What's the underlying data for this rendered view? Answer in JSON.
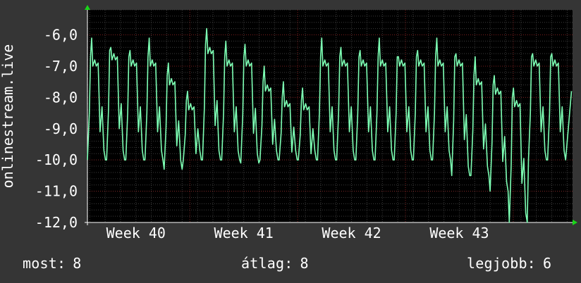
{
  "chart_data": {
    "type": "line",
    "ylabel": "onlinestream.live",
    "ylim": [
      -12.0,
      -5.2
    ],
    "yticks": [
      -6.0,
      -7.0,
      -8.0,
      -9.0,
      -10.0,
      -11.0,
      -12.0
    ],
    "ytick_labels": [
      "-6,0",
      "-7,0",
      "-8,0",
      "-9,0",
      "-10,0",
      "-11,0",
      "-12,0"
    ],
    "x_range_weeks": [
      39.55,
      44.05
    ],
    "xticks": [
      {
        "label": "Week 40",
        "week": 40
      },
      {
        "label": "Week 41",
        "week": 41
      },
      {
        "label": "Week 42",
        "week": 42
      },
      {
        "label": "Week 43",
        "week": 43
      }
    ],
    "grid": true,
    "colors": {
      "background": "#353535",
      "plot_background": "#000000",
      "grid_major": "#7a1e1e",
      "grid_minor": "#3c3c3c",
      "series": "#7dffb4",
      "axis_arrow": "#19d619",
      "text": "#ffffff"
    },
    "series": [
      {
        "peaks": [
          -6.1,
          -6.4,
          -6.5,
          -6.1,
          -6.9,
          -7.8,
          -5.8,
          -6.2,
          -6.3,
          -7.0,
          -7.5,
          -7.7,
          -6.1,
          -6.4,
          -6.5,
          -6.1,
          -6.7,
          -6.5,
          -6.1,
          -6.6,
          -6.7,
          -7.3,
          -7.7,
          -6.6,
          -6.6
        ],
        "shoulders": [
          -7.0,
          -6.8,
          -7.0,
          -7.0,
          -7.6,
          -8.4,
          -6.6,
          -7.0,
          -7.0,
          -7.8,
          -8.3,
          -8.4,
          -7.0,
          -7.0,
          -7.0,
          -7.0,
          -7.0,
          -7.0,
          -7.0,
          -7.0,
          -7.6,
          -7.9,
          -8.3,
          -7.0,
          -7.0
        ],
        "troughs": [
          -10.0,
          -10.0,
          -10.0,
          -10.0,
          -10.3,
          -10.0,
          -10.0,
          -10.0,
          -10.1,
          -10.0,
          -10.0,
          -10.0,
          -10.0,
          -10.0,
          -10.0,
          -10.0,
          -10.0,
          -10.0,
          -10.0,
          -10.5,
          -10.5,
          -11.0,
          -12.0,
          -10.0,
          -10.0
        ],
        "end_value": -7.8
      }
    ],
    "legend": {
      "current_label": "most:",
      "current_value": "8",
      "average_label": "átlag:",
      "average_value": "8",
      "best_label": "legjobb:",
      "best_value": "6"
    }
  }
}
